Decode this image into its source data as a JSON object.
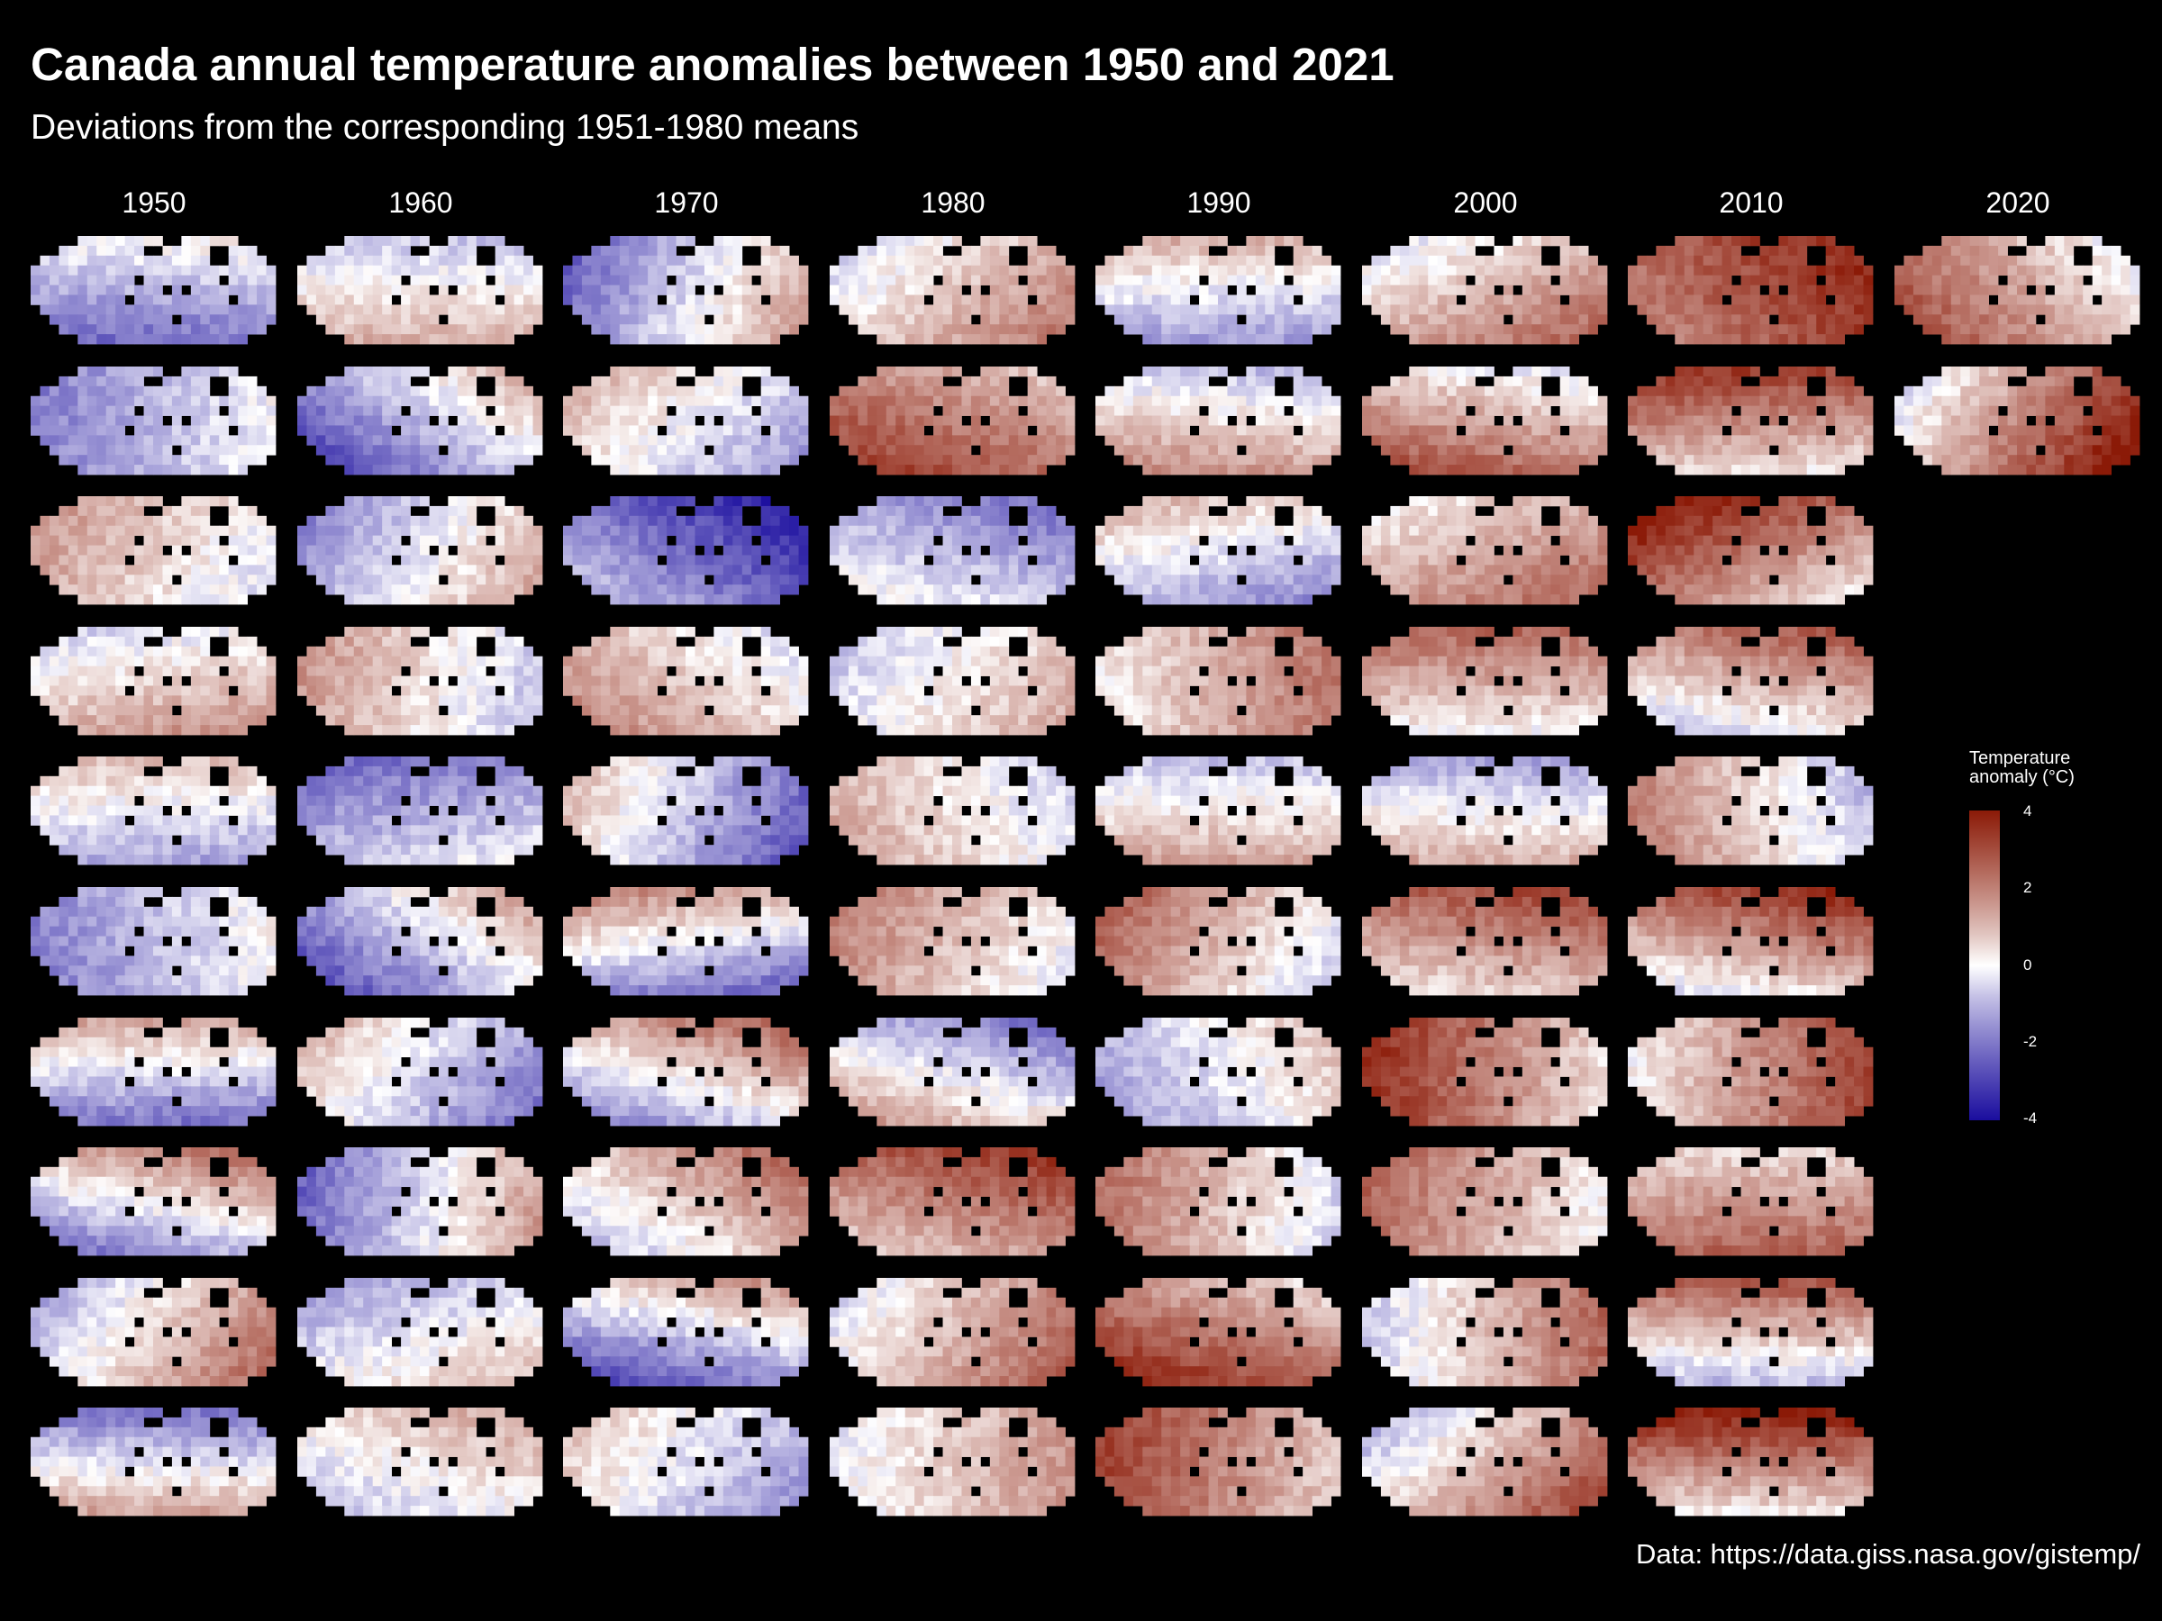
{
  "title": "Canada annual temperature anomalies between 1950 and 2021",
  "subtitle": "Deviations from the corresponding 1951-1980 means",
  "caption": "Data: https://data.giss.nasa.gov/gistemp/",
  "colors": {
    "background": "#000000",
    "hot": "#8b1a07",
    "neutral": "#ffffff",
    "cold": "#1a0d9e"
  },
  "chart_data": {
    "type": "heatmap",
    "layout": "small multiples of gridded anomaly maps: columns are decades, rows are years within the decade",
    "decade_labels": [
      "1950",
      "1960",
      "1970",
      "1980",
      "1990",
      "2000",
      "2010",
      "2020"
    ],
    "years": [
      1950,
      2021
    ],
    "panel_mean_anomaly_by_decade": [
      [
        -1.2,
        -1.0,
        0.6,
        0.7,
        -0.3,
        -0.9,
        -0.6,
        0.0,
        0.7,
        -0.2
      ],
      [
        0.3,
        -1.0,
        -0.2,
        0.4,
        -1.2,
        -0.8,
        -0.6,
        -0.4,
        -0.2,
        0.2
      ],
      [
        -0.4,
        -0.2,
        -2.3,
        0.8,
        -0.9,
        -0.4,
        0.3,
        0.8,
        -0.8,
        -0.4
      ],
      [
        0.9,
        2.2,
        -1.0,
        0.3,
        0.4,
        0.9,
        -0.2,
        2.1,
        1.2,
        0.8
      ],
      [
        -0.3,
        0.6,
        -0.4,
        1.3,
        0.4,
        1.0,
        -0.3,
        0.9,
        2.3,
        2.0
      ],
      [
        1.2,
        1.5,
        1.4,
        1.2,
        0.1,
        1.7,
        2.1,
        1.3,
        1.0,
        1.2
      ],
      [
        3.0,
        1.8,
        2.2,
        1.0,
        0.6,
        1.6,
        1.8,
        1.7,
        0.8,
        2.0
      ],
      [
        1.5,
        2.1
      ]
    ],
    "legend": {
      "title": "Temperature\nanomaly (°C)",
      "ticks": [
        "4",
        "2",
        "0",
        "-2",
        "-4"
      ],
      "range": [
        -4.2,
        4.2
      ]
    }
  }
}
